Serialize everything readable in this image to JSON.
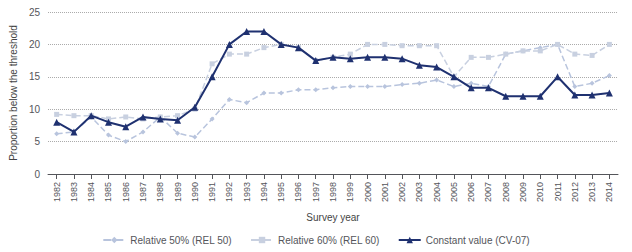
{
  "chart_data": {
    "type": "line",
    "x": [
      1982,
      1983,
      1984,
      1985,
      1986,
      1987,
      1988,
      1989,
      1990,
      1991,
      1992,
      1993,
      1994,
      1995,
      1996,
      1997,
      1998,
      1999,
      2000,
      2001,
      2002,
      2003,
      2004,
      2005,
      2006,
      2007,
      2008,
      2009,
      2010,
      2011,
      2012,
      2013,
      2014
    ],
    "series": [
      {
        "name": "Relative 50% (REL 50)",
        "color": "#b8c4dd",
        "marker": "diamond",
        "line_style": "dashed",
        "values": [
          6.2,
          6.5,
          8.8,
          6.0,
          5.0,
          6.5,
          8.8,
          6.3,
          5.7,
          8.5,
          11.5,
          11.0,
          12.5,
          12.5,
          13.0,
          13.0,
          13.3,
          13.5,
          13.5,
          13.5,
          13.8,
          14.0,
          14.5,
          13.5,
          14.0,
          13.5,
          18.5,
          19.0,
          19.5,
          20.0,
          13.5,
          14.0,
          15.2
        ]
      },
      {
        "name": "Relative 60% (REL 60)",
        "color": "#c8d0e0",
        "marker": "square",
        "line_style": "dashed",
        "values": [
          9.2,
          9.0,
          9.0,
          8.5,
          8.8,
          8.5,
          8.8,
          9.0,
          10.0,
          17.0,
          18.5,
          18.5,
          19.5,
          20.0,
          19.5,
          17.5,
          18.0,
          18.5,
          20.0,
          20.0,
          19.8,
          19.8,
          19.8,
          15.0,
          18.0,
          18.0,
          18.5,
          19.0,
          19.0,
          20.0,
          18.5,
          18.3,
          20.0
        ]
      },
      {
        "name": "Constant value (CV-07)",
        "color": "#1f3170",
        "marker": "triangle",
        "line_style": "solid",
        "values": [
          8.0,
          6.5,
          9.0,
          8.0,
          7.3,
          8.8,
          8.5,
          8.3,
          10.3,
          15.0,
          20.0,
          22.0,
          22.0,
          20.0,
          19.5,
          17.5,
          18.0,
          17.8,
          18.0,
          18.0,
          17.8,
          16.8,
          16.5,
          15.0,
          13.3,
          13.3,
          12.0,
          12.0,
          12.0,
          15.0,
          12.2,
          12.2,
          12.5
        ]
      }
    ],
    "xlabel": "Survey year",
    "ylabel": "Proportion below the threshold",
    "xlim": [
      1981.5,
      2014.5
    ],
    "xticks": [
      1982,
      1983,
      1984,
      1985,
      1986,
      1987,
      1988,
      1989,
      1990,
      1991,
      1992,
      1993,
      1994,
      1995,
      1996,
      1997,
      1998,
      1999,
      2000,
      2001,
      2002,
      2003,
      2004,
      2005,
      2006,
      2007,
      2008,
      2009,
      2010,
      2011,
      2012,
      2013,
      2014
    ],
    "ylim": [
      0,
      25
    ],
    "yticks": [
      0,
      5,
      10,
      15,
      20,
      25
    ],
    "grid": true,
    "legend": "bottom"
  }
}
